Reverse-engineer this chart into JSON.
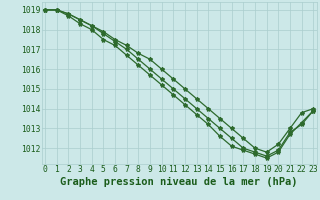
{
  "title": "Graphe pression niveau de la mer (hPa)",
  "xlabel_hours": [
    0,
    1,
    2,
    3,
    4,
    5,
    6,
    7,
    8,
    9,
    10,
    11,
    12,
    13,
    14,
    15,
    16,
    17,
    18,
    19,
    20,
    21,
    22,
    23
  ],
  "series": [
    [
      1019.0,
      1019.0,
      1018.8,
      1018.5,
      1018.2,
      1017.9,
      1017.5,
      1017.2,
      1016.8,
      1016.5,
      1016.0,
      1015.5,
      1015.0,
      1014.5,
      1014.0,
      1013.5,
      1013.0,
      1012.5,
      1012.0,
      1011.8,
      1012.2,
      1013.0,
      1013.8,
      1014.0
    ],
    [
      1019.0,
      1019.0,
      1018.8,
      1018.5,
      1018.2,
      1017.8,
      1017.4,
      1017.0,
      1016.5,
      1016.0,
      1015.5,
      1015.0,
      1014.5,
      1014.0,
      1013.5,
      1013.0,
      1012.5,
      1012.0,
      1011.8,
      1011.6,
      1011.9,
      1012.8,
      1013.2,
      1013.9
    ],
    [
      1019.0,
      1019.0,
      1018.7,
      1018.3,
      1018.0,
      1017.5,
      1017.2,
      1016.7,
      1016.2,
      1015.7,
      1015.2,
      1014.7,
      1014.2,
      1013.7,
      1013.2,
      1012.6,
      1012.1,
      1011.9,
      1011.7,
      1011.5,
      1011.8,
      1012.7,
      1013.3,
      1013.9
    ]
  ],
  "line_color": "#2d6a2d",
  "marker": "*",
  "marker_size": 3,
  "bg_color": "#cce8e8",
  "grid_color": "#aacece",
  "text_color": "#1a5c1a",
  "ylim": [
    1011.2,
    1019.4
  ],
  "yticks": [
    1012,
    1013,
    1014,
    1015,
    1016,
    1017,
    1018,
    1019
  ],
  "title_fontsize": 7.5,
  "tick_fontsize": 5.8,
  "linewidth": 0.9
}
